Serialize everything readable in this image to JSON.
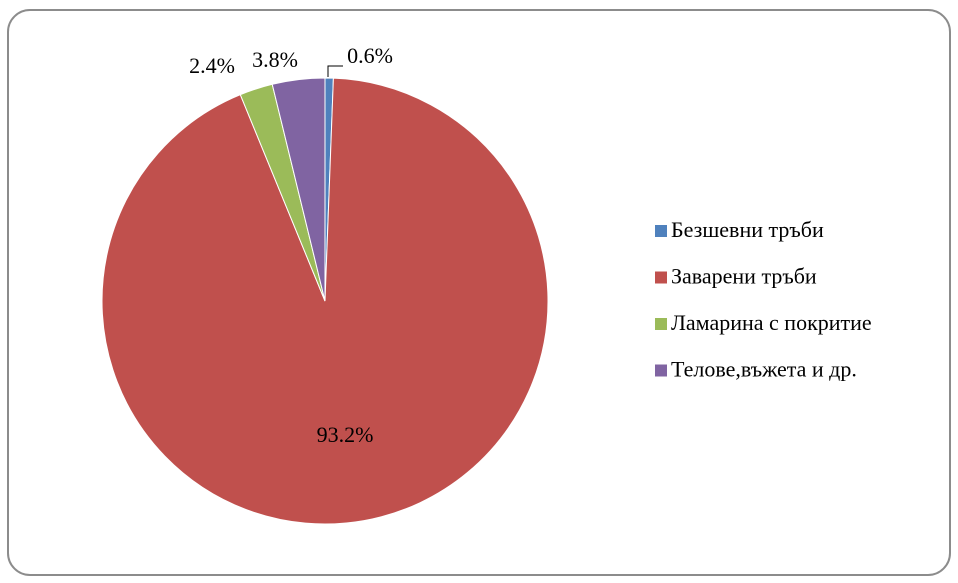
{
  "chart_data": {
    "type": "pie",
    "categories": [
      "Безшевни тръби",
      "Заварени тръби",
      "Ламарина с покритие",
      "Телове,въжета и др."
    ],
    "values": [
      0.6,
      93.2,
      2.4,
      3.8
    ],
    "value_labels": [
      "0.6%",
      "93.2%",
      "2.4%",
      "3.8%"
    ],
    "colors": [
      "#4f81bd",
      "#c0504d",
      "#9bbb59",
      "#8064a2"
    ],
    "legend": "right"
  }
}
